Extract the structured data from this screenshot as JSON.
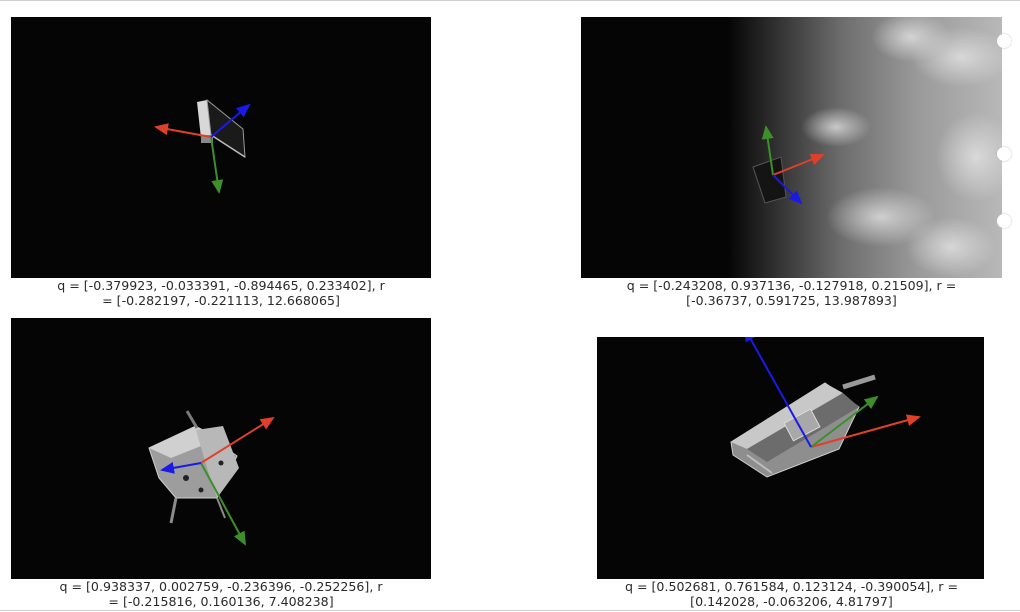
{
  "panels": [
    {
      "caption_line1": "q = [-0.379923, -0.033391, -0.894465, 0.233402], r",
      "caption_line2": "= [-0.282197, -0.221113, 12.668065]"
    },
    {
      "caption_line1": "q = [-0.243208, 0.937136, -0.127918, 0.21509], r =",
      "caption_line2": "[-0.36737, 0.591725, 13.987893]"
    },
    {
      "caption_line1": "q = [0.938337, 0.002759, -0.236396, -0.252256], r",
      "caption_line2": "= [-0.215816, 0.160136, 7.408238]"
    },
    {
      "caption_line1": "q = [0.502681, 0.761584, 0.123124, -0.390054], r =",
      "caption_line2": "[0.142028, -0.063206, 4.81797]"
    }
  ],
  "colors": {
    "x_axis": "#e0402a",
    "y_axis": "#3c8f2a",
    "z_axis": "#1a1ae6",
    "background": "#050505"
  }
}
